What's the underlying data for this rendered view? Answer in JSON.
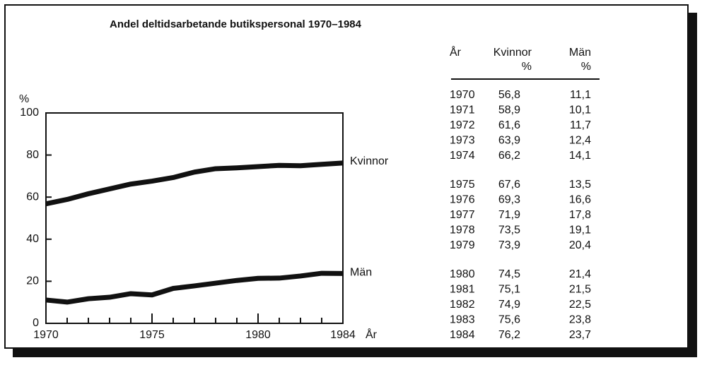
{
  "chart_data": {
    "type": "line",
    "title": "Andel deltidsarbetande butikspersonal 1970–1984",
    "ylabel": "%",
    "xlabel": "År",
    "x": [
      1970,
      1971,
      1972,
      1973,
      1974,
      1975,
      1976,
      1977,
      1978,
      1979,
      1980,
      1981,
      1982,
      1983,
      1984
    ],
    "series": [
      {
        "name": "Kvinnor",
        "color": "#111111",
        "values": [
          56.8,
          58.9,
          61.6,
          63.9,
          66.2,
          67.6,
          69.3,
          71.9,
          73.5,
          73.9,
          74.5,
          75.1,
          74.9,
          75.6,
          76.2
        ],
        "value_labels": [
          "56,8",
          "58,9",
          "61,6",
          "63,9",
          "66,2",
          "67,6",
          "69,3",
          "71,9",
          "73,5",
          "73,9",
          "74,5",
          "75,1",
          "74,9",
          "75,6",
          "76,2"
        ]
      },
      {
        "name": "Män",
        "color": "#111111",
        "values": [
          11.1,
          10.1,
          11.7,
          12.4,
          14.1,
          13.5,
          16.6,
          17.8,
          19.1,
          20.4,
          21.4,
          21.5,
          22.5,
          23.8,
          23.7
        ],
        "value_labels": [
          "11,1",
          "10,1",
          "11,7",
          "12,4",
          "14,1",
          "13,5",
          "16,6",
          "17,8",
          "19,1",
          "20,4",
          "21,4",
          "21,5",
          "22,5",
          "23,8",
          "23,7"
        ]
      }
    ],
    "xlim": [
      1970,
      1984
    ],
    "xticks": [
      1970,
      1975,
      1980,
      1984
    ],
    "ylim": [
      0,
      100
    ],
    "yticks": [
      0,
      20,
      40,
      60,
      80,
      100
    ],
    "grid": false
  },
  "table": {
    "headers": [
      [
        "År"
      ],
      [
        "Kvinnor",
        "%"
      ],
      [
        "Män",
        "%"
      ]
    ]
  }
}
